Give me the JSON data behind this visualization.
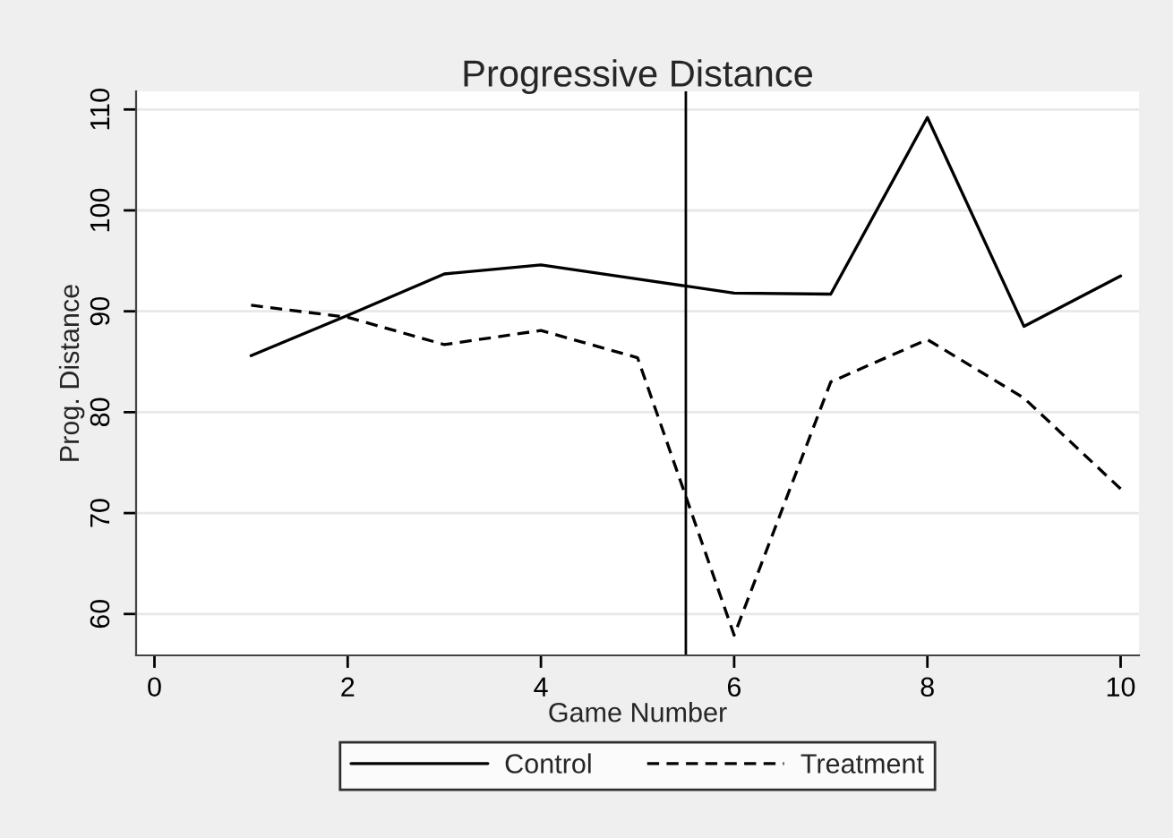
{
  "chart_data": {
    "type": "line",
    "title": "Progressive Distance",
    "xlabel": "Game Number",
    "ylabel": "Prog. Distance",
    "x": [
      1,
      2,
      3,
      4,
      5,
      6,
      7,
      8,
      9,
      10
    ],
    "series": [
      {
        "name": "Control",
        "color": "#000000",
        "line_style": "solid",
        "values": [
          85.6,
          89.6,
          93.7,
          94.6,
          93.2,
          91.8,
          91.7,
          109.2,
          88.5,
          93.5
        ]
      },
      {
        "name": "Treatment",
        "color": "#000000",
        "line_style": "dashed",
        "values": [
          90.6,
          89.4,
          86.7,
          88.1,
          85.4,
          57.9,
          83.0,
          87.2,
          81.4,
          72.4
        ]
      }
    ],
    "xlim": [
      -0.19,
      10.19
    ],
    "xticks": [
      0,
      2,
      4,
      6,
      8,
      10
    ],
    "ylim": [
      55.9,
      111.8
    ],
    "yticks": [
      60,
      70,
      80,
      90,
      100,
      110
    ],
    "ref_lines": [
      {
        "axis": "x",
        "value": 5.5,
        "color": "#000000"
      }
    ],
    "grid": "y",
    "legend": "bottom",
    "marker": "none"
  }
}
